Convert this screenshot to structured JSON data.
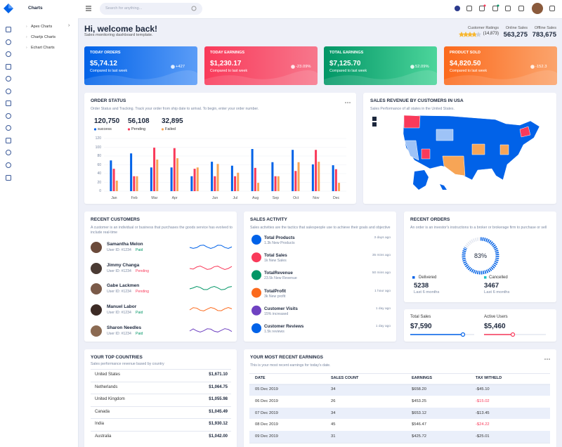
{
  "sidebar": {
    "title": "Charts",
    "menu": [
      "Apex Charts",
      "Chartjs Charts",
      "Echart Charts"
    ]
  },
  "header": {
    "search_placeholder": "Search for anything..."
  },
  "welcome": {
    "title": "Hi, welcome back!",
    "subtitle": "Sales monitoring dashboard template."
  },
  "summary": [
    {
      "label": "Customer Ratings",
      "value": "(14,873)"
    },
    {
      "label": "Online Sales",
      "value": "563,275"
    },
    {
      "label": "Offline Sales",
      "value": "783,675"
    }
  ],
  "cards": [
    {
      "title": "TODAY ORDERS",
      "value": "$5,74.12",
      "caption": "Compared to last week",
      "change": "+427"
    },
    {
      "title": "TODAY EARNINGS",
      "value": "$1,230.17",
      "caption": "Compared to last week",
      "change": "-23.09%"
    },
    {
      "title": "TOTAL EARNINGS",
      "value": "$7,125.70",
      "caption": "Compared to last week",
      "change": "52.09%"
    },
    {
      "title": "PRODUCT SOLD",
      "value": "$4,820.50",
      "caption": "Compared to last week",
      "change": "-152.3"
    }
  ],
  "order_status": {
    "title": "ORDER STATUS",
    "subtitle": "Order Status and Tracking. Track your order from ship date to arrival. To begin, enter your order number.",
    "stats": [
      "120,750",
      "56,108",
      "32,895"
    ],
    "chart_data": {
      "type": "bar",
      "categories": [
        "Jan",
        "Feb",
        "Mar",
        "Apr",
        null,
        "Jun",
        "Jul",
        "Aug",
        "Sep",
        "Oct",
        "Nov",
        "Dec"
      ],
      "series": [
        {
          "name": "success",
          "color": "#0162e8",
          "values": [
            70,
            86,
            54,
            54,
            34,
            67,
            58,
            96,
            66,
            94,
            61,
            59
          ]
        },
        {
          "name": "Pending",
          "color": "#f93a5a",
          "values": [
            51,
            34,
            99,
            98,
            51,
            34,
            34,
            53,
            34,
            46,
            94,
            50
          ]
        },
        {
          "name": "Failed",
          "color": "#f7a556",
          "values": [
            24,
            34,
            72,
            75,
            54,
            62,
            42,
            19,
            34,
            66,
            67,
            19
          ]
        }
      ],
      "ylim": [
        0,
        120
      ],
      "yticks": [
        0,
        20,
        40,
        60,
        80,
        100,
        120
      ],
      "grid": true
    }
  },
  "sales_revenue": {
    "title": "SALES REVENUE BY CUSTOMERS IN USA",
    "subtitle": "Sales Performance of all states in the United States."
  },
  "recent_customers": {
    "title": "RECENT CUSTOMERS",
    "description": "A customer is an individual or business that purchases the goods service has evolved to include real-time",
    "customers": [
      {
        "name": "Samantha Melon",
        "user_id": "User ID: #1234",
        "status": "Paid"
      },
      {
        "name": "Jimmy Changa",
        "user_id": "User ID: #1234",
        "status": "Pending"
      },
      {
        "name": "Gabe Lackmen",
        "user_id": "User ID: #1234",
        "status": "Pending"
      },
      {
        "name": "Manuel Labor",
        "user_id": "User ID: #1234",
        "status": "Paid"
      },
      {
        "name": "Sharon Needles",
        "user_id": "User ID: #1234",
        "status": "Paid"
      }
    ]
  },
  "sales_activity": {
    "title": "SALES ACTIVITY",
    "description": "Sales activities are the tactics that salespeople use to achieve their goals and objective",
    "items": [
      {
        "title": "Total Products",
        "detail": "1.3k New Products",
        "time": "3 days ago"
      },
      {
        "title": "Total Sales",
        "detail": "1k New Sales",
        "time": "35 mins ago"
      },
      {
        "title": "TotalRevenue",
        "detail": "23.5k New Revenue",
        "time": "50 mins ago"
      },
      {
        "title": "TotalProfit",
        "detail": "3k New profit",
        "time": "1 hour ago"
      },
      {
        "title": "Customer Visits",
        "detail": "15% increased",
        "time": "1 day ago"
      },
      {
        "title": "Customer Reviews",
        "detail": "1.5k reviews",
        "time": "1 day ago"
      }
    ]
  },
  "recent_orders": {
    "title": "RECENT ORDERS",
    "description": "An order is an investor's instructions to a broker or brokerage firm to purchase or sell",
    "gauge": {
      "value": 83,
      "label": "83%"
    },
    "stats": [
      {
        "label": "Delivered",
        "value": "5238",
        "period": "Last 6 months"
      },
      {
        "label": "Cancelled",
        "value": "3467",
        "period": "Last 6 months"
      }
    ]
  },
  "totals": [
    {
      "label": "Total Sales",
      "value": "$7,590"
    },
    {
      "label": "Active Users",
      "value": "$5,460"
    }
  ],
  "top_countries": {
    "title": "YOUR TOP COUNTRIES",
    "description": "Sales performance revenue based by country",
    "rows": [
      [
        "United States",
        "$1,671.10"
      ],
      [
        "Netherlands",
        "$1,064.75"
      ],
      [
        "United Kingdom",
        "$1,055.98"
      ],
      [
        "Canada",
        "$1,045.49"
      ],
      [
        "India",
        "$1,930.12"
      ],
      [
        "Australia",
        "$1,042.00"
      ]
    ]
  },
  "earnings": {
    "title": "YOUR MOST RECENT EARNINGS",
    "description": "This is your most recent earnings for today's date.",
    "columns": [
      "DATE",
      "SALES COUNT",
      "EARNINGS",
      "TAX WITHELD"
    ],
    "rows": [
      [
        "05 Dec 2019",
        "34",
        "$658.20",
        "-$45.10"
      ],
      [
        "06 Dec 2019",
        "26",
        "$453.25",
        "-$15.02"
      ],
      [
        "07 Dec 2019",
        "34",
        "$653.12",
        "-$13.45"
      ],
      [
        "08 Dec 2019",
        "45",
        "$546.47",
        "-$24.22"
      ],
      [
        "09 Dec 2019",
        "31",
        "$425.72",
        "-$25.01"
      ]
    ]
  }
}
